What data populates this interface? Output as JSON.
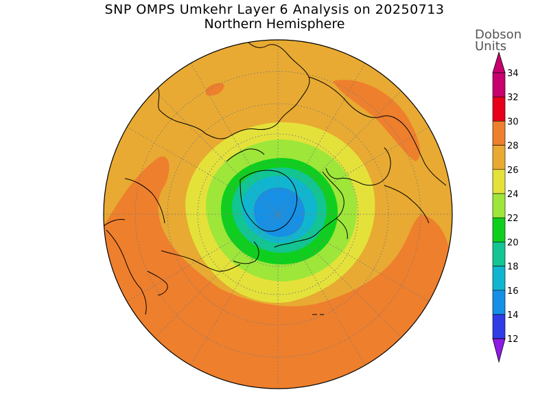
{
  "title": {
    "line1": "SNP OMPS Umkehr Layer 6 Analysis on 20250713",
    "line2": "Northern Hemisphere"
  },
  "colorbar": {
    "unit_line1": "Dobson",
    "unit_line2": "Units",
    "levels": [
      {
        "value": "34",
        "color": "#c8006e"
      },
      {
        "value": "32",
        "color": "#e8001a"
      },
      {
        "value": "30",
        "color": "#ee7f2d"
      },
      {
        "value": "28",
        "color": "#e8aa32"
      },
      {
        "value": "26",
        "color": "#e4e23a"
      },
      {
        "value": "24",
        "color": "#9ee63a"
      },
      {
        "value": "22",
        "color": "#0fcf1e"
      },
      {
        "value": "20",
        "color": "#12c592"
      },
      {
        "value": "18",
        "color": "#10b6cf"
      },
      {
        "value": "16",
        "color": "#1590e6"
      },
      {
        "value": "14",
        "color": "#2f3ce6"
      },
      {
        "value": "12",
        "color": "#7a12e6"
      }
    ],
    "top_color": "#c8006e",
    "bottom_color": "#8f1ae6"
  },
  "map": {
    "projection": "north-polar-stereographic",
    "field_colors": {
      "ring_30_32": "#ee7f2d",
      "ring_28_30": "#e8aa32",
      "ring_26_28": "#e4e23a",
      "ring_24_26": "#9ee63a",
      "ring_22_24": "#0fcf1e",
      "ring_20_22": "#12c592",
      "ring_18_20": "#10b6cf",
      "ring_16_18": "#1590e6"
    }
  }
}
